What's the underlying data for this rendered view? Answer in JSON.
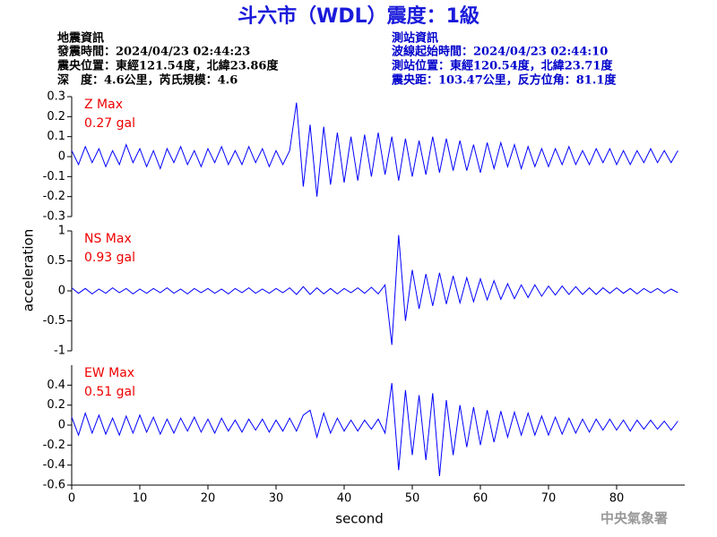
{
  "header": {
    "title": "斗六市（WDL）震度：1級",
    "left": [
      "地震資訊",
      "發震時間：2024/04/23 02:44:23",
      "震央位置：東經121.54度，北緯23.86度",
      "深　度：4.6公里，芮氏規模：4.6"
    ],
    "right": [
      "測站資訊",
      "波線起始時間：2024/04/23 02:44:10",
      "測站位置：東經120.54度，北緯23.71度",
      "震央距：103.47公里，反方位角：81.1度"
    ],
    "y_label": "acceleration",
    "footer": "中央氣象署"
  },
  "chart_data": [
    {
      "type": "line",
      "name": "Z Max",
      "max_label": "0.27 gal",
      "color": "#0000ff",
      "xlim": [
        0,
        90
      ],
      "ylim": [
        -0.3,
        0.3
      ],
      "yticks": [
        -0.3,
        -0.2,
        -0.1,
        0,
        0.1,
        0.2,
        0.3
      ],
      "x": [
        0,
        1,
        2,
        3,
        4,
        5,
        6,
        7,
        8,
        9,
        10,
        11,
        12,
        13,
        14,
        15,
        16,
        17,
        18,
        19,
        20,
        21,
        22,
        23,
        24,
        25,
        26,
        27,
        28,
        29,
        30,
        31,
        32,
        33,
        34,
        35,
        36,
        37,
        38,
        39,
        40,
        41,
        42,
        43,
        44,
        45,
        46,
        47,
        48,
        49,
        50,
        51,
        52,
        53,
        54,
        55,
        56,
        57,
        58,
        59,
        60,
        61,
        62,
        63,
        64,
        65,
        66,
        67,
        68,
        69,
        70,
        71,
        72,
        73,
        74,
        75,
        76,
        77,
        78,
        79,
        80,
        81,
        82,
        83,
        84,
        85,
        86,
        87,
        88,
        89
      ],
      "values": [
        0.03,
        -0.04,
        0.05,
        -0.03,
        0.04,
        -0.05,
        0.03,
        -0.04,
        0.06,
        -0.03,
        0.04,
        -0.05,
        0.03,
        -0.06,
        0.04,
        -0.03,
        0.05,
        -0.04,
        0.03,
        -0.05,
        0.04,
        -0.03,
        0.05,
        -0.04,
        0.03,
        -0.04,
        0.05,
        -0.03,
        0.04,
        -0.05,
        0.03,
        -0.04,
        0.03,
        0.27,
        -0.15,
        0.16,
        -0.2,
        0.15,
        -0.14,
        0.12,
        -0.13,
        0.1,
        -0.12,
        0.11,
        -0.1,
        0.12,
        -0.09,
        0.1,
        -0.12,
        0.09,
        -0.1,
        0.08,
        -0.09,
        0.1,
        -0.08,
        0.09,
        -0.07,
        0.08,
        -0.07,
        0.06,
        -0.08,
        0.07,
        -0.06,
        0.07,
        -0.05,
        0.06,
        -0.06,
        0.05,
        -0.05,
        0.04,
        -0.05,
        0.04,
        -0.04,
        0.05,
        -0.04,
        0.03,
        -0.04,
        0.04,
        -0.03,
        0.04,
        -0.04,
        0.03,
        -0.04,
        0.03,
        -0.03,
        0.04,
        -0.03,
        0.03,
        -0.03,
        0.03
      ]
    },
    {
      "type": "line",
      "name": "NS Max",
      "max_label": "0.93 gal",
      "color": "#0000ff",
      "xlim": [
        0,
        90
      ],
      "ylim": [
        -1,
        1
      ],
      "yticks": [
        -1,
        -0.5,
        0,
        0.5,
        1
      ],
      "x": [
        0,
        1,
        2,
        3,
        4,
        5,
        6,
        7,
        8,
        9,
        10,
        11,
        12,
        13,
        14,
        15,
        16,
        17,
        18,
        19,
        20,
        21,
        22,
        23,
        24,
        25,
        26,
        27,
        28,
        29,
        30,
        31,
        32,
        33,
        34,
        35,
        36,
        37,
        38,
        39,
        40,
        41,
        42,
        43,
        44,
        45,
        46,
        47,
        48,
        49,
        50,
        51,
        52,
        53,
        54,
        55,
        56,
        57,
        58,
        59,
        60,
        61,
        62,
        63,
        64,
        65,
        66,
        67,
        68,
        69,
        70,
        71,
        72,
        73,
        74,
        75,
        76,
        77,
        78,
        79,
        80,
        81,
        82,
        83,
        84,
        85,
        86,
        87,
        88,
        89
      ],
      "values": [
        0.05,
        -0.04,
        0.04,
        -0.05,
        0.03,
        -0.04,
        0.05,
        -0.03,
        0.04,
        -0.05,
        0.03,
        -0.04,
        0.04,
        -0.03,
        0.05,
        -0.04,
        0.03,
        -0.05,
        0.04,
        -0.03,
        0.04,
        -0.04,
        0.03,
        -0.05,
        0.04,
        -0.03,
        0.05,
        -0.04,
        0.03,
        -0.04,
        0.04,
        -0.03,
        0.05,
        -0.06,
        0.07,
        -0.06,
        0.05,
        -0.05,
        0.04,
        -0.05,
        0.04,
        -0.03,
        0.05,
        -0.04,
        0.06,
        -0.05,
        0.1,
        -0.9,
        0.93,
        -0.5,
        0.35,
        -0.3,
        0.28,
        -0.25,
        0.3,
        -0.22,
        0.25,
        -0.2,
        0.22,
        -0.18,
        0.2,
        -0.15,
        0.17,
        -0.14,
        0.12,
        -0.13,
        0.1,
        -0.11,
        0.1,
        -0.09,
        0.08,
        -0.07,
        0.08,
        -0.06,
        0.07,
        -0.06,
        0.05,
        -0.06,
        0.05,
        -0.04,
        0.05,
        -0.04,
        0.04,
        -0.05,
        0.04,
        -0.03,
        0.04,
        -0.04,
        0.03,
        -0.03
      ]
    },
    {
      "type": "line",
      "name": "EW Max",
      "max_label": "0.51 gal",
      "color": "#0000ff",
      "xlim": [
        0,
        90
      ],
      "ylim": [
        -0.6,
        0.6
      ],
      "yticks": [
        -0.6,
        -0.4,
        -0.2,
        0,
        0.2,
        0.4
      ],
      "xticks": [
        0,
        10,
        20,
        30,
        40,
        50,
        60,
        70,
        80
      ],
      "xlabel": "second",
      "x": [
        0,
        1,
        2,
        3,
        4,
        5,
        6,
        7,
        8,
        9,
        10,
        11,
        12,
        13,
        14,
        15,
        16,
        17,
        18,
        19,
        20,
        21,
        22,
        23,
        24,
        25,
        26,
        27,
        28,
        29,
        30,
        31,
        32,
        33,
        34,
        35,
        36,
        37,
        38,
        39,
        40,
        41,
        42,
        43,
        44,
        45,
        46,
        47,
        48,
        49,
        50,
        51,
        52,
        53,
        54,
        55,
        56,
        57,
        58,
        59,
        60,
        61,
        62,
        63,
        64,
        65,
        66,
        67,
        68,
        69,
        70,
        71,
        72,
        73,
        74,
        75,
        76,
        77,
        78,
        79,
        80,
        81,
        82,
        83,
        84,
        85,
        86,
        87,
        88,
        89
      ],
      "values": [
        0.08,
        -0.1,
        0.12,
        -0.08,
        0.1,
        -0.09,
        0.07,
        -0.1,
        0.09,
        -0.08,
        0.1,
        -0.07,
        0.08,
        -0.09,
        0.06,
        -0.08,
        0.07,
        -0.06,
        0.08,
        -0.07,
        0.06,
        -0.08,
        0.07,
        -0.06,
        0.05,
        -0.07,
        0.06,
        -0.05,
        0.06,
        -0.07,
        0.05,
        -0.06,
        0.07,
        -0.06,
        0.1,
        0.15,
        -0.12,
        0.12,
        -0.08,
        0.07,
        -0.06,
        0.05,
        -0.06,
        0.05,
        -0.04,
        0.06,
        -0.08,
        0.42,
        -0.45,
        0.35,
        -0.3,
        0.3,
        -0.35,
        0.32,
        -0.51,
        0.25,
        -0.3,
        0.2,
        -0.22,
        0.18,
        -0.2,
        0.15,
        -0.17,
        0.14,
        -0.12,
        0.13,
        -0.1,
        0.12,
        -0.1,
        0.09,
        -0.1,
        0.08,
        -0.09,
        0.07,
        -0.08,
        0.06,
        -0.07,
        0.06,
        -0.05,
        0.06,
        -0.05,
        0.05,
        -0.06,
        0.05,
        -0.04,
        0.05,
        -0.04,
        0.04,
        -0.05,
        0.04
      ]
    }
  ]
}
